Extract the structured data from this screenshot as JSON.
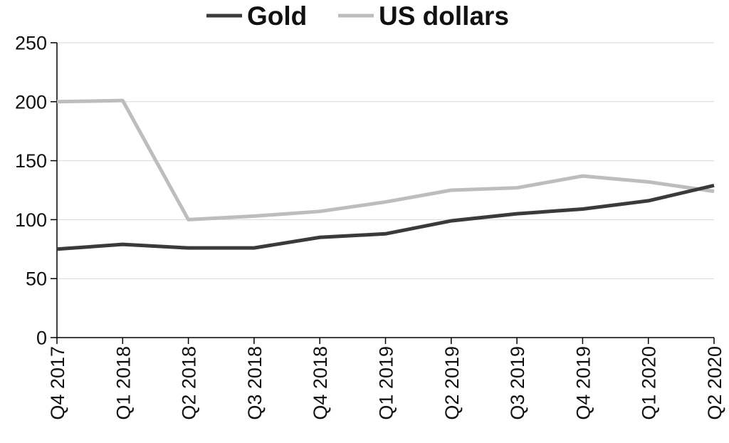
{
  "chart_data": {
    "type": "line",
    "title": "",
    "xlabel": "",
    "ylabel": "",
    "categories": [
      "Q4 2017",
      "Q1 2018",
      "Q2 2018",
      "Q3 2018",
      "Q4 2018",
      "Q1 2019",
      "Q2 2019",
      "Q3 2019",
      "Q4 2019",
      "Q1 2020",
      "Q2 2020"
    ],
    "ylim": [
      0,
      250
    ],
    "yticks": [
      "0",
      "50",
      "100",
      "150",
      "200",
      "250"
    ],
    "grid": true,
    "legend_position": "top-center",
    "series": [
      {
        "name": "Gold",
        "color": "#3a3a3a",
        "values": [
          75,
          79,
          76,
          76,
          85,
          88,
          99,
          105,
          109,
          116,
          129
        ]
      },
      {
        "name": "US dollars",
        "color": "#bdbdbd",
        "values": [
          200,
          201,
          100,
          103,
          107,
          115,
          125,
          127,
          137,
          132,
          124
        ]
      }
    ]
  }
}
